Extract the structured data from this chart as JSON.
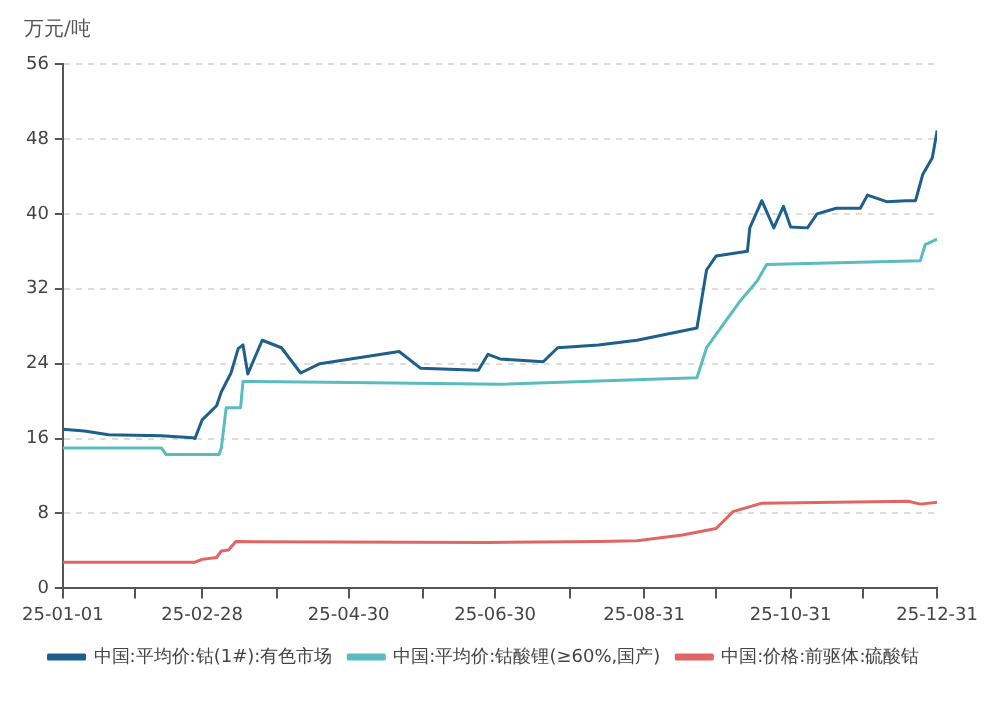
{
  "chart_data": {
    "type": "line",
    "ylabel": "万元/吨",
    "xlim": [
      "--01-01",
      "--12-31"
    ],
    "xticks": [
      {
        "value": "--01-01",
        "label": "25-01-01"
      },
      {
        "value": "--01-31",
        "label": null
      },
      {
        "value": "--02-28",
        "label": "25-02-28"
      },
      {
        "value": "--03-31",
        "label": null
      },
      {
        "value": "--04-30",
        "label": "25-04-30"
      },
      {
        "value": "--05-31",
        "label": null
      },
      {
        "value": "--06-30",
        "label": "25-06-30"
      },
      {
        "value": "--07-31",
        "label": null
      },
      {
        "value": "--08-31",
        "label": "25-08-31"
      },
      {
        "value": "--09-30",
        "label": null
      },
      {
        "value": "--10-31",
        "label": "25-10-31"
      },
      {
        "value": "--11-30",
        "label": null
      },
      {
        "value": "--12-31",
        "label": "25-12-31"
      }
    ],
    "ylim": [
      0,
      56
    ],
    "yticks": [
      0,
      8,
      16,
      24,
      32,
      40,
      48,
      56
    ],
    "grid": "y",
    "legend": "bottom",
    "marker": "none",
    "line_style": "solid",
    "series": [
      {
        "name": "中国:平均价:钴(1#):有色市场",
        "color": "#1f5f8b",
        "x": [
          "--01-01",
          "--01-10",
          "--01-20",
          "--02-11",
          "--02-24",
          "--02-25",
          "--02-28",
          "--03-06",
          "--03-08",
          "--03-12",
          "--03-15",
          "--03-17",
          "--03-19",
          "--03-25",
          "--04-02",
          "--04-10",
          "--04-18",
          "--05-21",
          "--05-30",
          "--06-23",
          "--06-27",
          "--07-02",
          "--07-20",
          "--07-26",
          "--08-12",
          "--08-28",
          "--09-22",
          "--09-26",
          "--09-30",
          "--10-13",
          "--10-14",
          "--10-19",
          "--10-24",
          "--10-28",
          "--10-31",
          "--11-07",
          "--11-11",
          "--11-19",
          "--11-29",
          "--12-02",
          "--12-10",
          "--12-18",
          "--12-22",
          "--12-25",
          "--12-29",
          "--12-31"
        ],
        "values": [
          17,
          16.8,
          16.4,
          16.3,
          16.1,
          16,
          18,
          19.5,
          21,
          23,
          25.6,
          26,
          22.9,
          26.5,
          25.7,
          23,
          24,
          25.3,
          23.5,
          23.3,
          25,
          24.5,
          24.2,
          25.7,
          26,
          26.5,
          27.8,
          34,
          35.5,
          36,
          38.5,
          41.4,
          38.5,
          40.8,
          38.6,
          38.5,
          40,
          40.6,
          40.6,
          42,
          41.3,
          41.4,
          41.4,
          44.2,
          46,
          48.9
        ]
      },
      {
        "name": "中国:平均价:钴酸锂(≥60%,国产)",
        "color": "#5bbcc0",
        "x": [
          "--01-01",
          "--02-11",
          "--02-13",
          "--03-07",
          "--03-08",
          "--03-10",
          "--03-16",
          "--03-17",
          "--05-01",
          "--07-02",
          "--09-22",
          "--09-26",
          "--10-10",
          "--10-17",
          "--10-21",
          "--12-24",
          "--12-26",
          "--12-31"
        ],
        "values": [
          15,
          15,
          14.3,
          14.3,
          15,
          19.3,
          19.3,
          22.1,
          22,
          21.8,
          22.5,
          25.7,
          30.7,
          32.8,
          34.6,
          35,
          36.7,
          37.3
        ]
      },
      {
        "name": "中国:价格:前驱体:硫酸钴",
        "color": "#e06666",
        "x": [
          "--01-01",
          "--02-25",
          "--02-28",
          "--03-06",
          "--03-08",
          "--03-11",
          "--03-14",
          "--06-27",
          "--08-12",
          "--08-28",
          "--09-16",
          "--09-30",
          "--10-07",
          "--10-19",
          "--12-19",
          "--12-24",
          "--12-31"
        ],
        "values": [
          2.8,
          2.8,
          3.1,
          3.3,
          4,
          4.1,
          5,
          4.9,
          5,
          5.1,
          5.7,
          6.4,
          8.2,
          9.1,
          9.3,
          9,
          9.2
        ]
      }
    ]
  }
}
